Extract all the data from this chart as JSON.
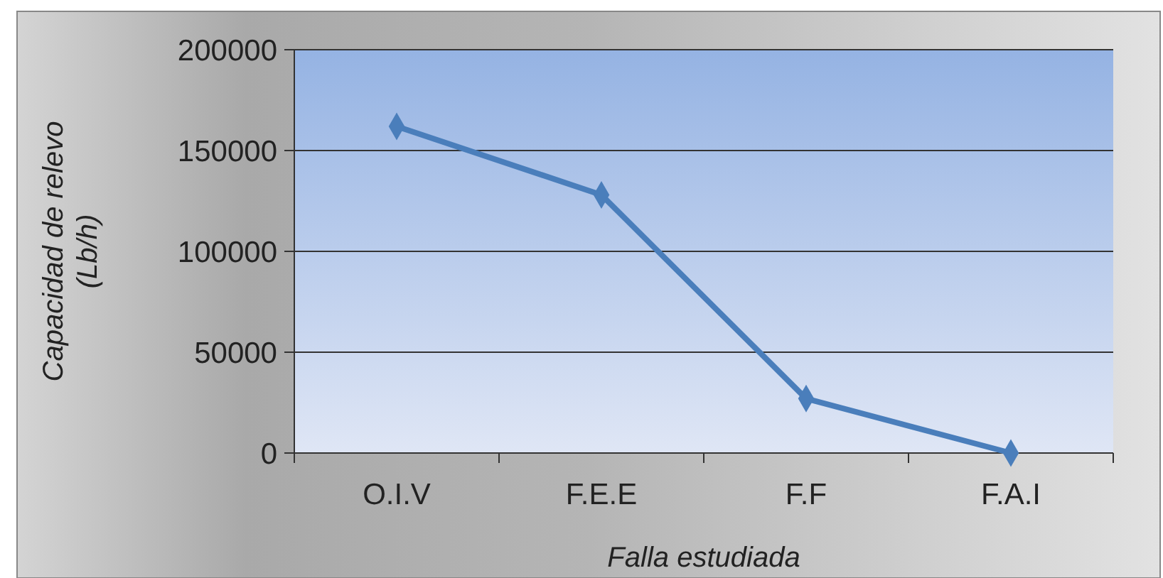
{
  "chart_data": {
    "type": "line",
    "xlabel": "Falla estudiada",
    "ylabel": "Capacidad de relevo\n(Lb/h)",
    "categories": [
      "O.I.V",
      "F.E.E",
      "F.F",
      "F.A.I"
    ],
    "series": [
      {
        "color": "#4a7ebb",
        "values": [
          162000,
          128000,
          27000,
          0
        ]
      }
    ],
    "ylim": [
      0,
      200000
    ],
    "yticks": [
      0,
      50000,
      100000,
      150000,
      200000
    ],
    "grid": "y",
    "marker": "diamond",
    "line_style": "solid"
  }
}
